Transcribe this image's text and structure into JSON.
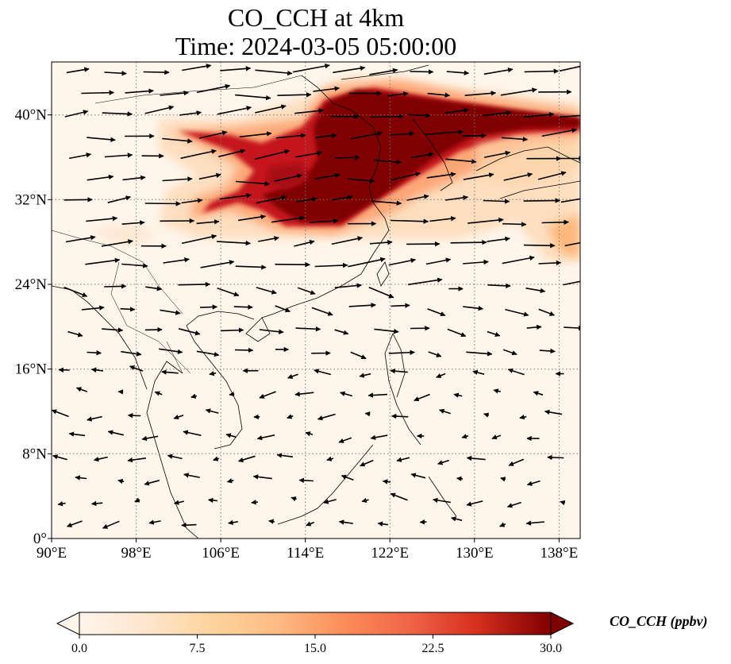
{
  "title": {
    "line1": "CO_CCH at 4km",
    "line2": "Time: 2024-03-05 05:00:00"
  },
  "map": {
    "lon_range": [
      90,
      140
    ],
    "lat_range": [
      0,
      45
    ],
    "lon_ticks": [
      {
        "value": 90,
        "label": "90°E"
      },
      {
        "value": 98,
        "label": "98°E"
      },
      {
        "value": 106,
        "label": "106°E"
      },
      {
        "value": 114,
        "label": "114°E"
      },
      {
        "value": 122,
        "label": "122°E"
      },
      {
        "value": 130,
        "label": "130°E"
      },
      {
        "value": 138,
        "label": "138°E"
      }
    ],
    "lat_ticks": [
      {
        "value": 0,
        "label": "0°"
      },
      {
        "value": 8,
        "label": "8°N"
      },
      {
        "value": 16,
        "label": "16°N"
      },
      {
        "value": 24,
        "label": "24°N"
      },
      {
        "value": 32,
        "label": "32°N"
      },
      {
        "value": 40,
        "label": "40°N"
      }
    ],
    "gridlines": true,
    "field": "CO_CCH concentration filled contours with wind vectors"
  },
  "colorbar": {
    "label": "CO_CCH (ppbv)",
    "min": 0.0,
    "max": 30.0,
    "ticks": [
      {
        "value": 0.0,
        "label": "0.0"
      },
      {
        "value": 7.5,
        "label": "7.5"
      },
      {
        "value": 15.0,
        "label": "15.0"
      },
      {
        "value": 22.5,
        "label": "22.5"
      },
      {
        "value": 30.0,
        "label": "30.0"
      }
    ],
    "colors": [
      "#fff5eb",
      "#fdd49e",
      "#fdbb84",
      "#fc8d59",
      "#ef6548",
      "#d7301f",
      "#b30000",
      "#7f0000"
    ],
    "extend": "both"
  }
}
